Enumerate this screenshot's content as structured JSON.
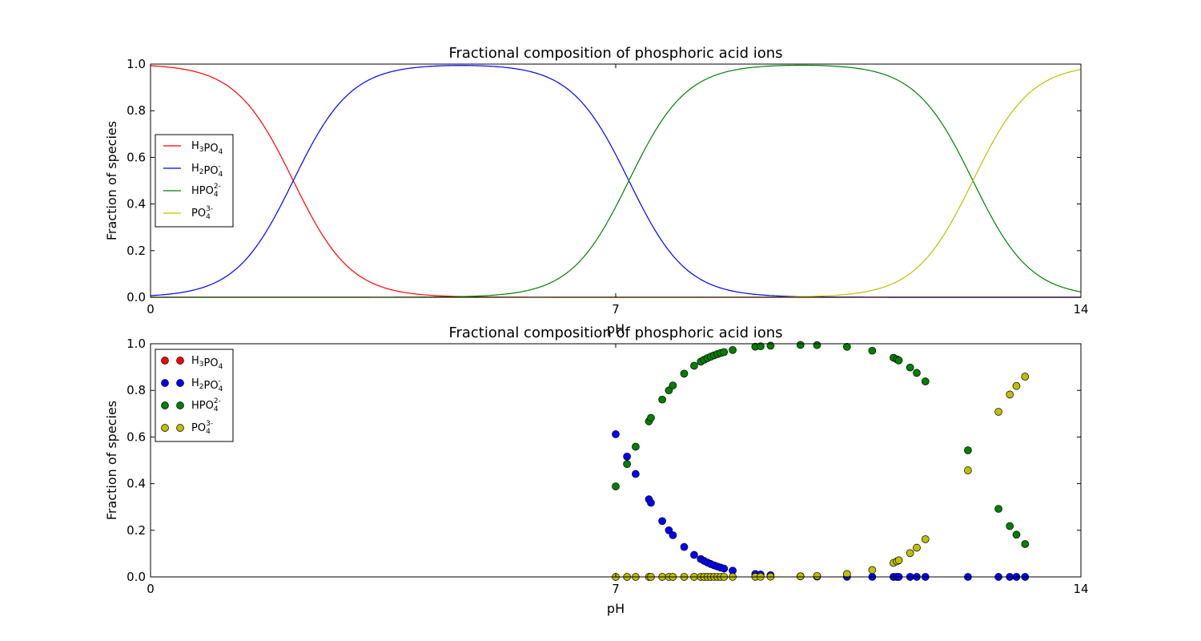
{
  "chart_data": [
    {
      "type": "line",
      "title": "Fractional composition of phosphoric acid ions",
      "xlabel": "pH",
      "ylabel": "Fraction of species",
      "xlim": [
        0,
        14
      ],
      "ylim": [
        0,
        1
      ],
      "x_ticks": [
        "0",
        "7",
        "14"
      ],
      "y_ticks": [
        "0.0",
        "0.2",
        "0.4",
        "0.6",
        "0.8",
        "1.0"
      ],
      "grid": false,
      "legend_position": "center-left",
      "pKa": [
        2.148,
        7.198,
        12.375
      ],
      "series": [
        {
          "name": "H3PO4",
          "legend": {
            "base": "H",
            "sub1": "3",
            "mid": "PO",
            "sub2": "4",
            "sup": ""
          },
          "color": "#ff0000"
        },
        {
          "name": "H2PO4-",
          "legend": {
            "base": "H",
            "sub1": "2",
            "mid": "PO",
            "sub2": "4",
            "sup": "-"
          },
          "color": "#0000ff"
        },
        {
          "name": "HPO4 2-",
          "legend": {
            "base": "",
            "sub1": "",
            "mid": "HPO",
            "sub2": "4",
            "sup": "2-"
          },
          "color": "#008000"
        },
        {
          "name": "PO4 3-",
          "legend": {
            "base": "",
            "sub1": "",
            "mid": "PO",
            "sub2": "4",
            "sup": "3-"
          },
          "color": "#bfbf00"
        }
      ]
    },
    {
      "type": "scatter",
      "title": "Fractional composition of phosphoric acid ions",
      "xlabel": "pH",
      "ylabel": "Fraction of species",
      "xlim": [
        0,
        14
      ],
      "ylim": [
        0,
        1
      ],
      "x_ticks": [
        "0",
        "7",
        "14"
      ],
      "y_ticks": [
        "0.0",
        "0.2",
        "0.4",
        "0.6",
        "0.8",
        "1.0"
      ],
      "grid": false,
      "legend_position": "top-left",
      "pKa": [
        2.148,
        7.198,
        12.375
      ],
      "x": [
        7.0,
        7.17,
        7.3,
        7.5,
        7.53,
        7.7,
        7.8,
        7.86,
        8.03,
        8.18,
        8.28,
        8.33,
        8.38,
        8.43,
        8.48,
        8.53,
        8.58,
        8.63,
        8.76,
        9.1,
        9.18,
        9.33,
        9.78,
        10.03,
        10.48,
        10.86,
        11.18,
        11.23,
        11.26,
        11.43,
        11.53,
        11.66,
        12.3,
        12.76,
        12.93,
        13.03,
        13.16
      ],
      "series": [
        {
          "name": "H3PO4",
          "legend": {
            "base": "H",
            "sub1": "3",
            "mid": "PO",
            "sub2": "4",
            "sup": ""
          },
          "color": "#ff0000"
        },
        {
          "name": "H2PO4-",
          "legend": {
            "base": "H",
            "sub1": "2",
            "mid": "PO",
            "sub2": "4",
            "sup": "-"
          },
          "color": "#0000ff"
        },
        {
          "name": "HPO4 2-",
          "legend": {
            "base": "",
            "sub1": "",
            "mid": "HPO",
            "sub2": "4",
            "sup": "2-"
          },
          "color": "#008000"
        },
        {
          "name": "PO4 3-",
          "legend": {
            "base": "",
            "sub1": "",
            "mid": "PO",
            "sub2": "4",
            "sup": "3-"
          },
          "color": "#bfbf00"
        }
      ]
    }
  ]
}
